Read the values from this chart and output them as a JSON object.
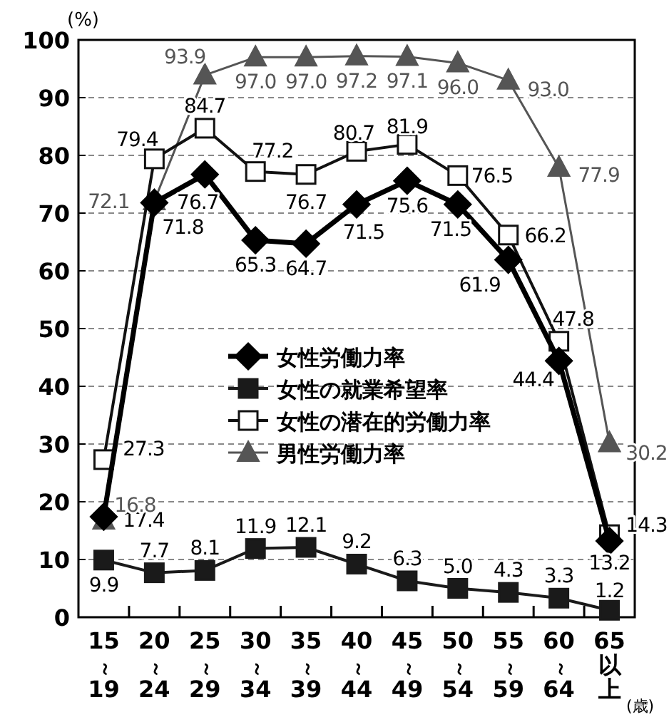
{
  "chart_data": {
    "type": "line",
    "ylabel": "(%)",
    "xlabel": "(歳)",
    "categories": [
      "15～19",
      "20～24",
      "25～29",
      "30～34",
      "35～39",
      "40～44",
      "45～49",
      "50～54",
      "55～59",
      "60～64",
      "65以上"
    ],
    "ylim": [
      0,
      100
    ],
    "yticks": [
      0,
      10,
      20,
      30,
      40,
      50,
      60,
      70,
      80,
      90,
      100
    ],
    "grid": "y",
    "legend": "center",
    "line_style": "solid",
    "series": [
      {
        "name": "女性労働力率",
        "color": "#000000",
        "marker": "diamond",
        "values": [
          17.4,
          71.8,
          76.7,
          65.3,
          64.7,
          71.5,
          75.6,
          71.5,
          61.9,
          44.4,
          13.2
        ],
        "value_labels": [
          "17.4",
          "71.8",
          "76.7",
          "65.3",
          "64.7",
          "71.5",
          "75.6",
          "71.5",
          "61.9",
          "44.4",
          "13.2"
        ]
      },
      {
        "name": "女性の就業希望率",
        "color": "#1a1a1a",
        "marker": "square",
        "values": [
          9.9,
          7.7,
          8.1,
          11.9,
          12.1,
          9.2,
          6.3,
          5.0,
          4.3,
          3.3,
          1.2
        ],
        "value_labels": [
          "9.9",
          "7.7",
          "8.1",
          "11.9",
          "12.1",
          "9.2",
          "6.3",
          "5.0",
          "4.3",
          "3.3",
          "1.2"
        ]
      },
      {
        "name": "女性の潜在的労働力率",
        "color": "#111111",
        "marker": "square",
        "values": [
          27.3,
          79.4,
          84.7,
          77.2,
          76.7,
          80.7,
          81.9,
          76.5,
          66.2,
          47.8,
          14.3
        ],
        "value_labels": [
          "27.3",
          "79.4",
          "84.7",
          "77.2",
          "76.7",
          "80.7",
          "81.9",
          "76.5",
          "66.2",
          "47.8",
          "14.3"
        ]
      },
      {
        "name": "男性労働力率",
        "color": "#555555",
        "marker": "triangle",
        "values": [
          16.8,
          72.1,
          93.9,
          97.0,
          97.0,
          97.2,
          97.1,
          96.0,
          93.0,
          77.9,
          30.2
        ],
        "value_labels": [
          "16.8",
          "72.1",
          "93.9",
          "97.0",
          "97.0",
          "97.2",
          "97.1",
          "96.0",
          "93.0",
          "77.9",
          "30.2"
        ]
      }
    ]
  }
}
